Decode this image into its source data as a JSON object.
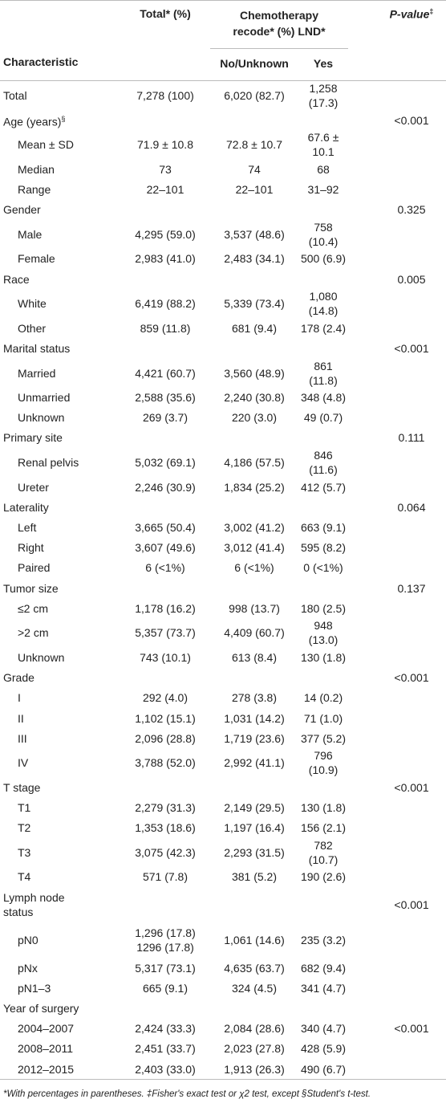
{
  "header": {
    "characteristic": "Characteristic",
    "total": "Total* (%)",
    "group": "Chemotherapy recode* (%) LND*",
    "no": "No/Unknown",
    "yes": "Yes",
    "p_value": "P-value",
    "p_value_sup": "‡"
  },
  "table": {
    "rows": [
      {
        "label": "Total",
        "cells": [
          "7,278 (100)",
          "6,020 (82.7)",
          "1,258 (17.3)",
          null
        ]
      },
      {
        "label": "Age (years)",
        "sup": "§",
        "cells": [
          null,
          null,
          null,
          "<0.001"
        ]
      },
      {
        "label": "Mean ± SD",
        "indent": true,
        "cells": [
          "71.9 ± 10.8",
          "72.8 ± 10.7",
          "67.6 ± 10.1",
          null
        ]
      },
      {
        "label": "Median",
        "indent": true,
        "cells": [
          "73",
          "74",
          "68",
          null
        ]
      },
      {
        "label": "Range",
        "indent": true,
        "cells": [
          "22–101",
          "22–101",
          "31–92",
          null
        ]
      },
      {
        "label": "Gender",
        "cells": [
          null,
          null,
          null,
          "0.325"
        ]
      },
      {
        "label": "Male",
        "indent": true,
        "cells": [
          "4,295 (59.0)",
          "3,537 (48.6)",
          "758 (10.4)",
          null
        ]
      },
      {
        "label": "Female",
        "indent": true,
        "cells": [
          "2,983 (41.0)",
          "2,483 (34.1)",
          "500 (6.9)",
          null
        ]
      },
      {
        "label": "Race",
        "cells": [
          null,
          null,
          null,
          "0.005"
        ]
      },
      {
        "label": "White",
        "indent": true,
        "cells": [
          "6,419 (88.2)",
          "5,339 (73.4)",
          "1,080 (14.8)",
          null
        ]
      },
      {
        "label": "Other",
        "indent": true,
        "cells": [
          "859 (11.8)",
          "681 (9.4)",
          "178 (2.4)",
          null
        ]
      },
      {
        "label": "Marital status",
        "cells": [
          null,
          null,
          null,
          "<0.001"
        ]
      },
      {
        "label": "Married",
        "indent": true,
        "cells": [
          "4,421 (60.7)",
          "3,560 (48.9)",
          "861 (11.8)",
          null
        ]
      },
      {
        "label": "Unmarried",
        "indent": true,
        "cells": [
          "2,588 (35.6)",
          "2,240 (30.8)",
          "348 (4.8)",
          null
        ]
      },
      {
        "label": "Unknown",
        "indent": true,
        "cells": [
          "269 (3.7)",
          "220 (3.0)",
          "49 (0.7)",
          null
        ]
      },
      {
        "label": "Primary site",
        "cells": [
          null,
          null,
          null,
          "0.111"
        ]
      },
      {
        "label": "Renal pelvis",
        "indent": true,
        "cells": [
          "5,032 (69.1)",
          "4,186 (57.5)",
          "846 (11.6)",
          null
        ]
      },
      {
        "label": "Ureter",
        "indent": true,
        "cells": [
          "2,246 (30.9)",
          "1,834 (25.2)",
          "412 (5.7)",
          null
        ]
      },
      {
        "label": "Laterality",
        "cells": [
          null,
          null,
          null,
          "0.064"
        ]
      },
      {
        "label": "Left",
        "indent": true,
        "cells": [
          "3,665 (50.4)",
          "3,002 (41.2)",
          "663 (9.1)",
          null
        ]
      },
      {
        "label": "Right",
        "indent": true,
        "cells": [
          "3,607 (49.6)",
          "3,012 (41.4)",
          "595 (8.2)",
          null
        ]
      },
      {
        "label": "Paired",
        "indent": true,
        "cells": [
          "6 (<1%)",
          "6 (<1%)",
          "0 (<1%)",
          null
        ]
      },
      {
        "label": "Tumor size",
        "cells": [
          null,
          null,
          null,
          "0.137"
        ]
      },
      {
        "label": "≤2 cm",
        "indent": true,
        "cells": [
          "1,178 (16.2)",
          "998 (13.7)",
          "180 (2.5)",
          null
        ]
      },
      {
        "label": ">2 cm",
        "indent": true,
        "cells": [
          "5,357 (73.7)",
          "4,409 (60.7)",
          "948 (13.0)",
          null
        ]
      },
      {
        "label": "Unknown",
        "indent": true,
        "cells": [
          "743 (10.1)",
          "613 (8.4)",
          "130 (1.8)",
          null
        ]
      },
      {
        "label": "Grade",
        "cells": [
          null,
          null,
          null,
          "<0.001"
        ]
      },
      {
        "label": "I",
        "indent": true,
        "cells": [
          "292 (4.0)",
          "278 (3.8)",
          "14 (0.2)",
          null
        ]
      },
      {
        "label": "II",
        "indent": true,
        "cells": [
          "1,102 (15.1)",
          "1,031 (14.2)",
          "71 (1.0)",
          null
        ]
      },
      {
        "label": "III",
        "indent": true,
        "cells": [
          "2,096 (28.8)",
          "1,719 (23.6)",
          "377 (5.2)",
          null
        ]
      },
      {
        "label": "IV",
        "indent": true,
        "cells": [
          "3,788 (52.0)",
          "2,992 (41.1)",
          "796 (10.9)",
          null
        ]
      },
      {
        "label": "T stage",
        "cells": [
          null,
          null,
          null,
          "<0.001"
        ]
      },
      {
        "label": "T1",
        "indent": true,
        "cells": [
          "2,279 (31.3)",
          "2,149 (29.5)",
          "130 (1.8)",
          null
        ]
      },
      {
        "label": "T2",
        "indent": true,
        "cells": [
          "1,353 (18.6)",
          "1,197 (16.4)",
          "156 (2.1)",
          null
        ]
      },
      {
        "label": "T3",
        "indent": true,
        "cells": [
          "3,075 (42.3)",
          "2,293 (31.5)",
          "782 (10.7)",
          null
        ]
      },
      {
        "label": "T4",
        "indent": true,
        "cells": [
          "571 (7.8)",
          "381 (5.2)",
          "190 (2.6)",
          null
        ]
      },
      {
        "label": "Lymph node status",
        "cells": [
          null,
          null,
          null,
          "<0.001"
        ]
      },
      {
        "label": "pN0",
        "indent": true,
        "cells": [
          [
            "1,296 (17.8)",
            "1296 (17.8)"
          ],
          "1,061 (14.6)",
          "235 (3.2)",
          null
        ]
      },
      {
        "label": "pNx",
        "indent": true,
        "cells": [
          "5,317 (73.1)",
          "4,635 (63.7)",
          "682 (9.4)",
          null
        ]
      },
      {
        "label": "pN1–3",
        "indent": true,
        "cells": [
          "665 (9.1)",
          "324 (4.5)",
          "341 (4.7)",
          null
        ]
      },
      {
        "label": "Year of surgery",
        "cells": [
          null,
          null,
          null,
          null
        ]
      },
      {
        "label": "2004–2007",
        "indent": true,
        "cells": [
          "2,424 (33.3)",
          "2,084 (28.6)",
          "340 (4.7)",
          "<0.001"
        ]
      },
      {
        "label": "2008–2011",
        "indent": true,
        "cells": [
          "2,451 (33.7)",
          "2,023 (27.8)",
          "428 (5.9)",
          null
        ]
      },
      {
        "label": "2012–2015",
        "indent": true,
        "cells": [
          "2,403 (33.0)",
          "1,913 (26.3)",
          "490 (6.7)",
          null
        ]
      }
    ]
  },
  "footnote": "*With percentages in parentheses. ‡Fisher's exact test or χ2 test, except §Student's t-test."
}
